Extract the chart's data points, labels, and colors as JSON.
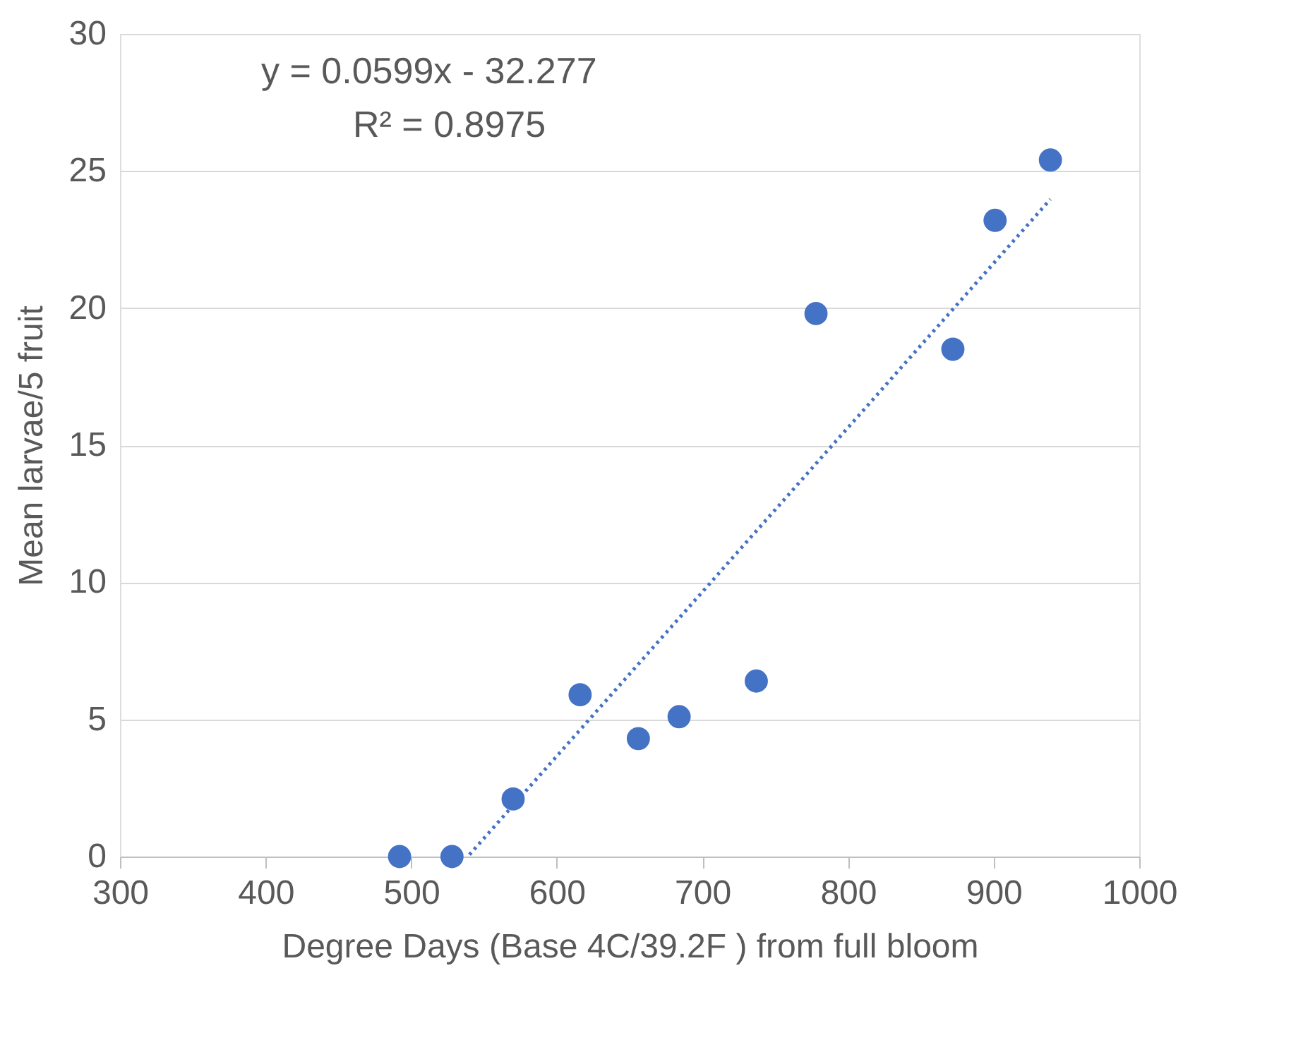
{
  "chart_data": {
    "type": "scatter",
    "xlabel": "Degree Days (Base 4C/39.2F ) from full bloom",
    "ylabel": "Mean larvae/5 fruit",
    "annotations": [
      "y = 0.0599x - 32.277",
      "R² = 0.8975"
    ],
    "series": [
      {
        "color": "#4472c4",
        "marker": "circle",
        "x": [
          492,
          528,
          570,
          616,
          656,
          684,
          737,
          778,
          872,
          901,
          939
        ],
        "values": [
          0,
          0,
          2.1,
          5.9,
          4.3,
          5.1,
          6.4,
          19.8,
          18.5,
          23.2,
          25.4
        ]
      },
      {
        "type": "line",
        "color": "#4472c4",
        "line_style": "dotted",
        "x": [
          540,
          939
        ],
        "values": [
          0.07,
          23.97
        ]
      }
    ],
    "xlim": [
      300,
      1000
    ],
    "xticks": [
      300,
      400,
      500,
      600,
      700,
      800,
      900,
      1000
    ],
    "ylim": [
      0,
      30
    ],
    "yticks": [
      0,
      5,
      10,
      15,
      20,
      25,
      30
    ],
    "grid": "y"
  }
}
